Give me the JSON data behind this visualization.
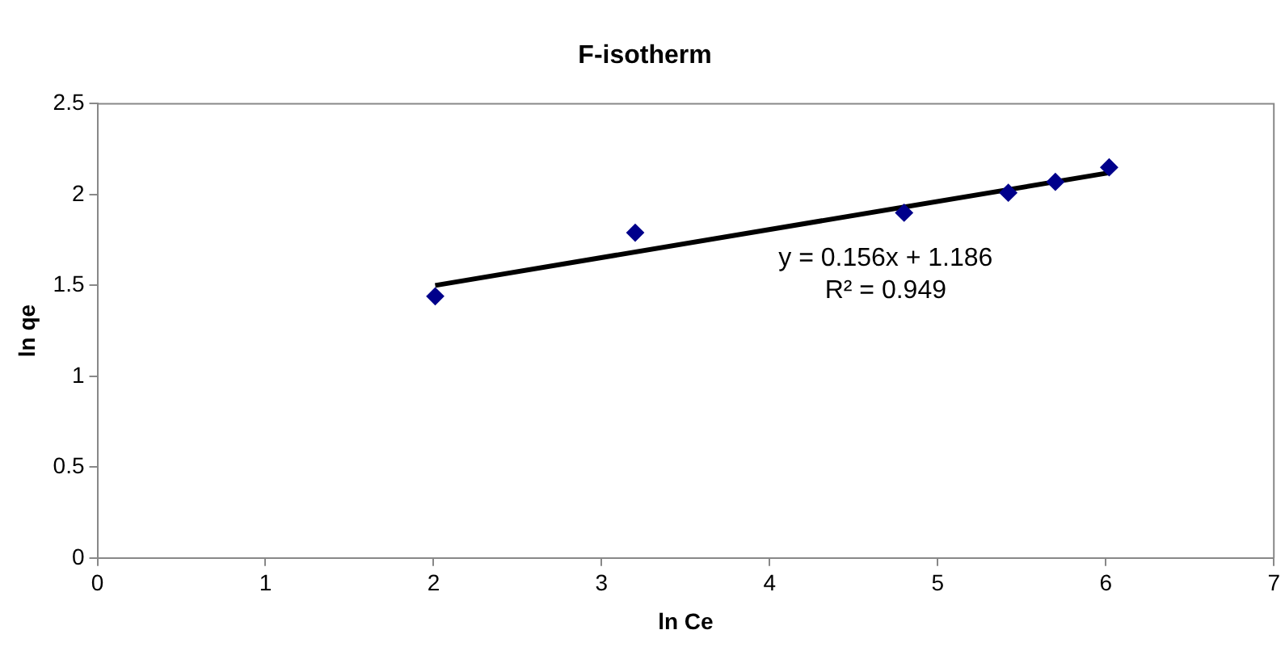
{
  "chart_data": {
    "type": "scatter",
    "title": "F-isotherm",
    "xlabel": "ln Ce",
    "ylabel": "ln qe",
    "grid": false,
    "legend": false,
    "series": [
      {
        "color": "#00008b",
        "marker": "diamond",
        "x": [
          2.01,
          3.2,
          4.8,
          5.42,
          5.7,
          6.02
        ],
        "values": [
          1.44,
          1.79,
          1.9,
          2.01,
          2.07,
          2.15
        ]
      },
      {
        "type": "line",
        "marker": "none",
        "color": "#000000",
        "x": [
          2.01,
          6.02
        ],
        "values": [
          1.5,
          2.12
        ]
      }
    ],
    "xlim": [
      0,
      7
    ],
    "xticks": [
      0,
      1,
      2,
      3,
      4,
      5,
      6,
      7
    ],
    "ylim": [
      0,
      2.5
    ],
    "yticks": [
      0,
      0.5,
      1,
      1.5,
      2,
      2.5
    ],
    "annotations": [
      "y = 0.156x + 1.186",
      "R² = 0.949"
    ]
  }
}
